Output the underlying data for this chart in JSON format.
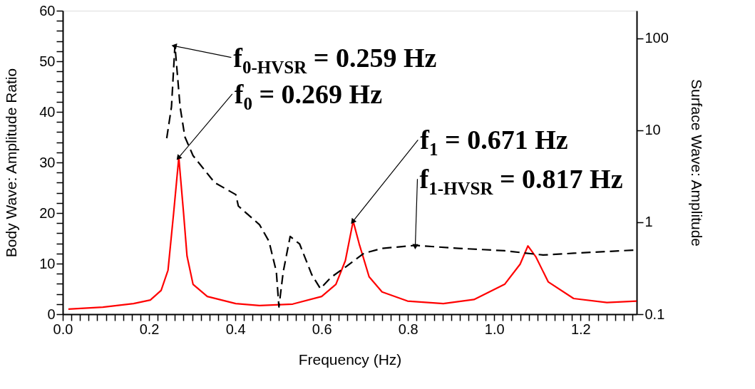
{
  "chart_data": {
    "type": "line",
    "xlabel": "Frequency (Hz)",
    "ylabel": "Body Wave:  Amplitude Ratio",
    "y2label": "Surface Wave:  Amplitude",
    "xlim": [
      0,
      1.33
    ],
    "ylim": [
      0,
      60
    ],
    "y2lim": [
      0.1,
      200
    ],
    "log": "y2",
    "grid": false,
    "xticks": [
      {
        "value": 0,
        "label": "0.0"
      },
      {
        "value": 0.02,
        "label": null
      },
      {
        "value": 0.04,
        "label": null
      },
      {
        "value": 0.06,
        "label": null
      },
      {
        "value": 0.08,
        "label": null
      },
      {
        "value": 0.1,
        "label": null
      },
      {
        "value": 0.12,
        "label": null
      },
      {
        "value": 0.14,
        "label": null
      },
      {
        "value": 0.16,
        "label": null
      },
      {
        "value": 0.18,
        "label": null
      },
      0.2,
      {
        "value": 0.22,
        "label": null
      },
      {
        "value": 0.24,
        "label": null
      },
      {
        "value": 0.26,
        "label": null
      },
      {
        "value": 0.28,
        "label": null
      },
      {
        "value": 0.3,
        "label": null
      },
      {
        "value": 0.32,
        "label": null
      },
      {
        "value": 0.34,
        "label": null
      },
      {
        "value": 0.36,
        "label": null
      },
      {
        "value": 0.38,
        "label": null
      },
      0.4,
      {
        "value": 0.42,
        "label": null
      },
      {
        "value": 0.44,
        "label": null
      },
      {
        "value": 0.46,
        "label": null
      },
      {
        "value": 0.48,
        "label": null
      },
      {
        "value": 0.5,
        "label": null
      },
      {
        "value": 0.52,
        "label": null
      },
      {
        "value": 0.54,
        "label": null
      },
      {
        "value": 0.56,
        "label": null
      },
      {
        "value": 0.58,
        "label": null
      },
      0.6,
      {
        "value": 0.62,
        "label": null
      },
      {
        "value": 0.64,
        "label": null
      },
      {
        "value": 0.66,
        "label": null
      },
      {
        "value": 0.68,
        "label": null
      },
      {
        "value": 0.7,
        "label": null
      },
      {
        "value": 0.72,
        "label": null
      },
      {
        "value": 0.74,
        "label": null
      },
      {
        "value": 0.76,
        "label": null
      },
      {
        "value": 0.78,
        "label": null
      },
      0.8,
      {
        "value": 0.82,
        "label": null
      },
      {
        "value": 0.84,
        "label": null
      },
      {
        "value": 0.86,
        "label": null
      },
      {
        "value": 0.88,
        "label": null
      },
      {
        "value": 0.9,
        "label": null
      },
      {
        "value": 0.92,
        "label": null
      },
      {
        "value": 0.94,
        "label": null
      },
      {
        "value": 0.96,
        "label": null
      },
      {
        "value": 0.98,
        "label": null
      },
      {
        "value": 1,
        "label": "1.0"
      },
      {
        "value": 1.02,
        "label": null
      },
      {
        "value": 1.04,
        "label": null
      },
      {
        "value": 1.06,
        "label": null
      },
      {
        "value": 1.08,
        "label": null
      },
      {
        "value": 1.1,
        "label": null
      },
      {
        "value": 1.12,
        "label": null
      },
      {
        "value": 1.14,
        "label": null
      },
      {
        "value": 1.16,
        "label": null
      },
      {
        "value": 1.18,
        "label": null
      },
      1.2,
      {
        "value": 1.22,
        "label": null
      },
      {
        "value": 1.24,
        "label": null
      },
      {
        "value": 1.26,
        "label": null
      },
      {
        "value": 1.28,
        "label": null
      },
      {
        "value": 1.3,
        "label": null
      },
      {
        "value": 1.32,
        "label": null
      }
    ],
    "yticks": [
      0,
      {
        "value": 2,
        "label": null
      },
      {
        "value": 4,
        "label": null
      },
      {
        "value": 6,
        "label": null
      },
      {
        "value": 8,
        "label": null
      },
      10,
      {
        "value": 12,
        "label": null
      },
      {
        "value": 14,
        "label": null
      },
      {
        "value": 16,
        "label": null
      },
      {
        "value": 18,
        "label": null
      },
      20,
      {
        "value": 22,
        "label": null
      },
      {
        "value": 24,
        "label": null
      },
      {
        "value": 26,
        "label": null
      },
      {
        "value": 28,
        "label": null
      },
      30,
      {
        "value": 32,
        "label": null
      },
      {
        "value": 34,
        "label": null
      },
      {
        "value": 36,
        "label": null
      },
      {
        "value": 38,
        "label": null
      },
      40,
      {
        "value": 42,
        "label": null
      },
      {
        "value": 44,
        "label": null
      },
      {
        "value": 46,
        "label": null
      },
      {
        "value": 48,
        "label": null
      },
      50,
      {
        "value": 52,
        "label": null
      },
      {
        "value": 54,
        "label": null
      },
      {
        "value": 56,
        "label": null
      },
      {
        "value": 58,
        "label": null
      },
      60
    ],
    "y2ticks": [
      0.1,
      1,
      10,
      100
    ],
    "series": [
      {
        "color": "#ff0000",
        "line_style": "solid",
        "x": [
          0.013,
          0.093,
          0.164,
          0.203,
          0.228,
          0.244,
          0.257,
          0.269,
          0.28,
          0.288,
          0.302,
          0.335,
          0.401,
          0.456,
          0.533,
          0.6,
          0.633,
          0.655,
          0.673,
          0.687,
          0.71,
          0.74,
          0.799,
          0.882,
          0.953,
          1.024,
          1.06,
          1.078,
          1.096,
          1.125,
          1.184,
          1.261,
          1.33
        ],
        "values": [
          1.0,
          1.4,
          2.1,
          2.8,
          4.7,
          8.7,
          20,
          31,
          20,
          11.5,
          5.9,
          3.5,
          2.1,
          1.7,
          2.0,
          3.5,
          5.9,
          10.6,
          18.4,
          13.9,
          7.4,
          4.4,
          2.6,
          2.1,
          2.9,
          5.9,
          9.9,
          13.5,
          11.4,
          6.4,
          3.1,
          2.3,
          2.6
        ]
      },
      {
        "color": "#000000",
        "line_style": "dashed",
        "axis": "y2",
        "x": [
          0.241,
          0.252,
          0.26,
          0.272,
          0.283,
          0.302,
          0.352,
          0.401,
          0.407,
          0.456,
          0.478,
          0.495,
          0.501,
          0.511,
          0.527,
          0.549,
          0.577,
          0.597,
          0.621,
          0.657,
          0.698,
          0.74,
          0.817,
          0.918,
          1.024,
          1.113,
          1.184,
          1.33
        ],
        "values": [
          8.2,
          18,
          84,
          18,
          8.5,
          5.3,
          2.7,
          2.0,
          1.5,
          0.94,
          0.62,
          0.29,
          0.12,
          0.29,
          0.7,
          0.58,
          0.27,
          0.19,
          0.25,
          0.33,
          0.46,
          0.52,
          0.56,
          0.52,
          0.49,
          0.44,
          0.46,
          0.5
        ]
      }
    ],
    "annotations": [
      {
        "text": "f$_{0-HVSR}$ = 0.259 Hz",
        "x": 0.26,
        "y": 53
      },
      {
        "text": "f$_{0}$ = 0.269 Hz",
        "x": 0.269,
        "y": 31
      },
      {
        "text": "f$_{1}$ = 0.671 Hz",
        "x": 0.673,
        "y": 18.4
      },
      {
        "text": "f$_{1-HVSR}$ = 0.817 Hz",
        "x": 0.817,
        "y": 13.5
      }
    ]
  }
}
